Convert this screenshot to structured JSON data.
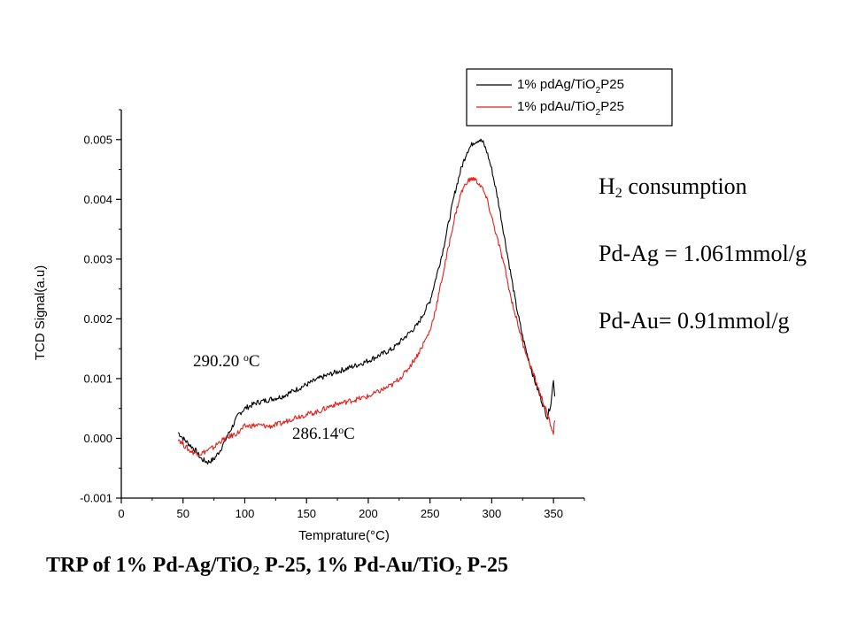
{
  "chart_data": {
    "type": "line",
    "xlabel": "Temprature(°C)",
    "ylabel": "TCD Signal(a.u)",
    "xlim": [
      0,
      375
    ],
    "ylim": [
      -0.001,
      0.0055
    ],
    "xticks": [
      "0",
      "50",
      "100",
      "150",
      "200",
      "250",
      "300",
      "350"
    ],
    "yticks": [
      "-0.001",
      "0.000",
      "0.001",
      "0.002",
      "0.003",
      "0.004",
      "0.005"
    ],
    "grid": false,
    "legend_position": "top-right",
    "series": [
      {
        "name": "1% pdAg/TiO2P25",
        "legend_main": "1% pdAg/TiO",
        "legend_sub": "2",
        "legend_tail": "P25",
        "color": "#000000",
        "x": [
          46,
          50,
          55,
          60,
          65,
          70,
          75,
          80,
          85,
          90,
          95,
          100,
          110,
          120,
          130,
          140,
          150,
          160,
          170,
          180,
          190,
          200,
          210,
          220,
          230,
          240,
          250,
          255,
          260,
          265,
          270,
          275,
          280,
          285,
          290,
          293,
          296,
          300,
          305,
          310,
          315,
          320,
          325,
          330,
          335,
          340,
          345,
          348,
          350,
          351
        ],
        "y": [
          0.0001,
          0.0,
          -0.0001,
          -0.0002,
          -0.00035,
          -0.0004,
          -0.00035,
          -0.0002,
          0.0,
          0.0002,
          0.0004,
          0.0005,
          0.0006,
          0.00065,
          0.0007,
          0.0008,
          0.0009,
          0.001,
          0.00108,
          0.00115,
          0.00122,
          0.0013,
          0.0014,
          0.0015,
          0.0017,
          0.0019,
          0.0023,
          0.0027,
          0.0031,
          0.0036,
          0.0041,
          0.0045,
          0.0048,
          0.00495,
          0.005,
          0.00495,
          0.0048,
          0.0045,
          0.004,
          0.0034,
          0.0028,
          0.0022,
          0.0017,
          0.0013,
          0.00095,
          0.00065,
          0.00035,
          0.0006,
          0.001,
          0.0007
        ]
      },
      {
        "name": "1% pdAu/TiO2P25",
        "legend_main": "1% pdAu/TiO",
        "legend_sub": "2",
        "legend_tail": "P25",
        "color": "#e0201a",
        "x": [
          46,
          50,
          55,
          60,
          65,
          70,
          75,
          80,
          85,
          90,
          95,
          100,
          110,
          120,
          130,
          140,
          150,
          160,
          170,
          180,
          190,
          200,
          210,
          220,
          230,
          240,
          250,
          255,
          260,
          265,
          270,
          275,
          280,
          285,
          288,
          292,
          296,
          300,
          305,
          310,
          315,
          320,
          325,
          330,
          335,
          340,
          345,
          348,
          350,
          351
        ],
        "y": [
          0.0,
          -0.0001,
          -0.0002,
          -0.00025,
          -0.00025,
          -0.0002,
          -0.00015,
          -5e-05,
          0.0,
          5e-05,
          0.0001,
          0.0002,
          0.00022,
          0.0002,
          0.00025,
          0.00035,
          0.0004,
          0.00045,
          0.00055,
          0.0006,
          0.00065,
          0.0007,
          0.0008,
          0.0009,
          0.0011,
          0.0014,
          0.0018,
          0.0022,
          0.0027,
          0.0032,
          0.0037,
          0.0041,
          0.0043,
          0.00435,
          0.0043,
          0.0042,
          0.004,
          0.0037,
          0.0033,
          0.0029,
          0.0024,
          0.002,
          0.0016,
          0.0013,
          0.001,
          0.0007,
          0.0004,
          0.0002,
          0.0001,
          0.0003
        ]
      }
    ],
    "annotations": [
      {
        "id": "ag-peak",
        "main": "290.20 ",
        "sup": "o",
        "tail": "C"
      },
      {
        "id": "au-peak",
        "main": "286.14",
        "sup": "o",
        "tail": "C"
      }
    ]
  },
  "side_text": {
    "h2_main": "H",
    "h2_sub": "2",
    "h2_tail": " consumption",
    "pdag": "Pd-Ag = 1.061mmol/g",
    "pdau": "Pd-Au= 0.91mmol/g"
  },
  "caption": {
    "part1": "TRP of 1% Pd-Ag/TiO",
    "sub1": "2",
    "part2": " P-25, 1% Pd-Au/TiO",
    "sub2": "2",
    "part3": " P-25"
  }
}
